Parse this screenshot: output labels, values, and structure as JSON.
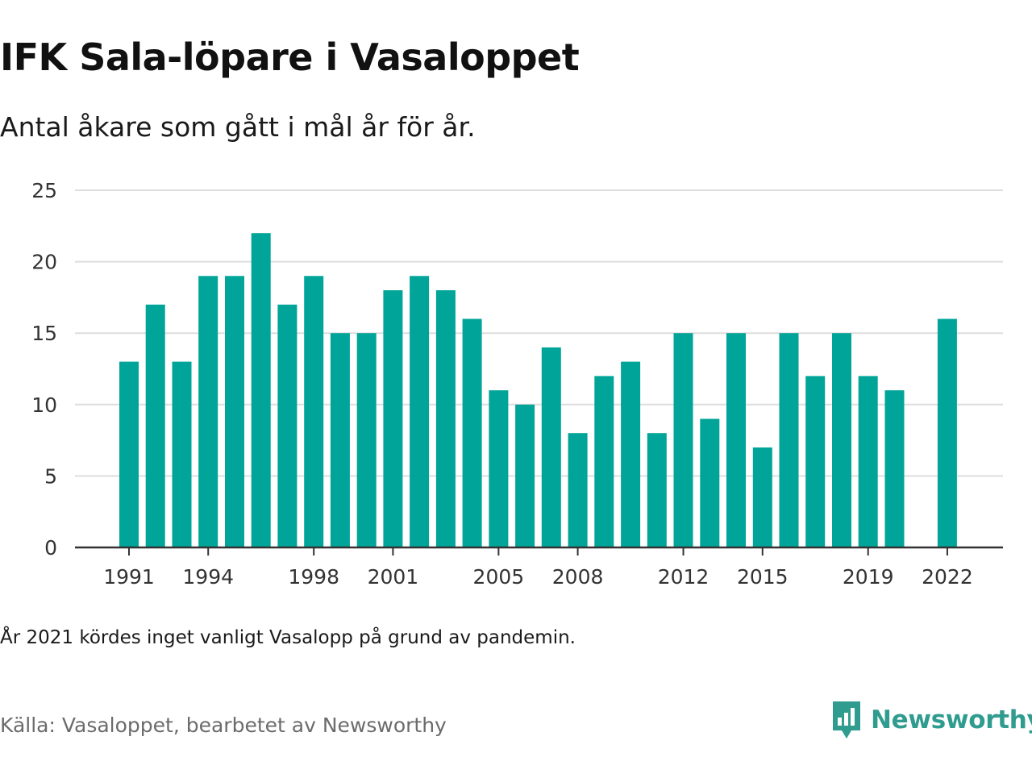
{
  "title": "IFK Sala-löpare i Vasaloppet",
  "subtitle": "Antal åkare som gått i mål år för år.",
  "note": "År 2021 kördes inget vanligt Vasalopp på grund av pandemin.",
  "source": "Källa: Vasaloppet, bearbetet av Newsworthy",
  "brand": {
    "name": "Newsworthy",
    "color": "#2f9c8f",
    "icon": "newsworthy-logo-icon"
  },
  "colors": {
    "bar": "#00a499",
    "grid": "#dddddd",
    "axis": "#333333"
  },
  "chart_data": {
    "type": "bar",
    "x": [
      1991,
      1992,
      1993,
      1994,
      1995,
      1996,
      1997,
      1998,
      1999,
      2000,
      2001,
      2002,
      2003,
      2004,
      2005,
      2006,
      2007,
      2008,
      2009,
      2010,
      2011,
      2012,
      2013,
      2014,
      2015,
      2016,
      2017,
      2018,
      2019,
      2020,
      2021,
      2022
    ],
    "values": [
      13,
      17,
      13,
      19,
      19,
      22,
      17,
      19,
      15,
      15,
      18,
      19,
      18,
      16,
      11,
      10,
      14,
      8,
      12,
      13,
      8,
      15,
      9,
      15,
      7,
      15,
      12,
      15,
      12,
      11,
      null,
      16
    ],
    "x_ticks": [
      1991,
      1994,
      1998,
      2001,
      2005,
      2008,
      2012,
      2015,
      2019,
      2022
    ],
    "y_ticks": [
      0,
      5,
      10,
      15,
      20,
      25
    ],
    "ylim": [
      0,
      25
    ],
    "xlabel": "",
    "ylabel": "",
    "grid": true,
    "legend": "none"
  }
}
